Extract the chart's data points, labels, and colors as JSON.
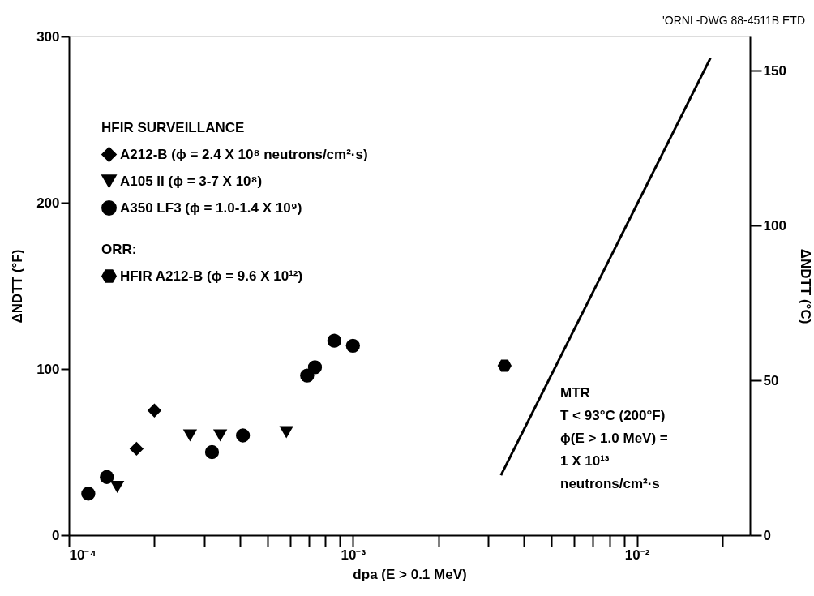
{
  "chart_data": {
    "type": "scatter",
    "xlabel": "dpa (E > 0.1 MeV)",
    "ylabel": "ΔNDTT (°F)",
    "y2label": "ΔNDTT (°C)",
    "legend_title": "HFIR SURVEILLANCE",
    "legend": "top left",
    "grid": false,
    "log": "x",
    "xlim": [
      0.0001,
      0.025
    ],
    "xticks": [
      {
        "value": 0.0001,
        "label": "10⁻⁴"
      },
      {
        "value": 0.0002,
        "label": null
      },
      {
        "value": 0.0003,
        "label": null
      },
      {
        "value": 0.0004,
        "label": null
      },
      {
        "value": 0.0005,
        "label": null
      },
      {
        "value": 0.0006,
        "label": null
      },
      {
        "value": 0.0007,
        "label": null
      },
      {
        "value": 0.0008,
        "label": null
      },
      {
        "value": 0.0009,
        "label": null
      },
      {
        "value": 0.001,
        "label": "10⁻³"
      },
      {
        "value": 0.002,
        "label": null
      },
      {
        "value": 0.003,
        "label": null
      },
      {
        "value": 0.004,
        "label": null
      },
      {
        "value": 0.005,
        "label": null
      },
      {
        "value": 0.006,
        "label": null
      },
      {
        "value": 0.007,
        "label": null
      },
      {
        "value": 0.008,
        "label": null
      },
      {
        "value": 0.009,
        "label": null
      },
      {
        "value": 0.01,
        "label": "10⁻²"
      },
      {
        "value": 0.02,
        "label": null
      }
    ],
    "ylim": [
      0,
      300
    ],
    "yticks": [
      0,
      100,
      200,
      300
    ],
    "y2lim": [
      0,
      161
    ],
    "y2ticks": [
      0,
      50,
      100,
      150
    ],
    "series": [
      {
        "name": "A212-B (ϕ = 2.4 X 10⁸  neutrons/cm²·s)",
        "color": "#000000",
        "marker": "diamond",
        "x": [
          0.000173,
          0.0002
        ],
        "values": [
          52,
          75
        ]
      },
      {
        "name": "A105 II (ϕ = 3-7 X 10⁸)",
        "color": "#000000",
        "marker": "triangle",
        "x": [
          0.000148,
          0.000267,
          0.000341,
          0.000583
        ],
        "values": [
          29,
          60,
          60,
          62
        ]
      },
      {
        "name": "A350  LF3 (ϕ = 1.0-1.4 X 10⁹)",
        "color": "#000000",
        "marker": "circle",
        "x": [
          0.000117,
          0.000136,
          0.000319,
          0.00041,
          0.00069,
          0.000735,
          0.00086,
          0.001
        ],
        "values": [
          25,
          35,
          50,
          60,
          96,
          101,
          117,
          114
        ]
      },
      {
        "name": "HFIR A212-B  (ϕ = 9.6 X 10¹²)",
        "color": "#000000",
        "x": [
          0.00342
        ],
        "values": [
          102
        ]
      },
      {
        "type": "line",
        "color": "#000000",
        "marker": "none",
        "line_style": "solid",
        "x": [
          0.00332,
          0.01815
        ],
        "values": [
          36,
          287
        ]
      }
    ],
    "annotations": [
      "ORR:",
      "MTR\nT < 93°C  (200°F)\nϕ(E > 1.0 MeV) =\n1 X 10¹³\n        neutrons/cm²·s",
      "'ORNL-DWG 88-4511B ETD"
    ]
  }
}
